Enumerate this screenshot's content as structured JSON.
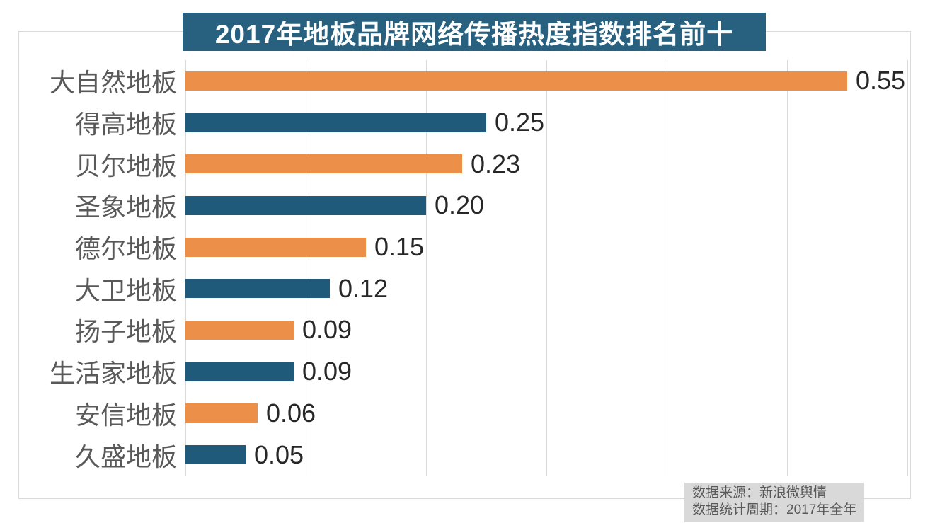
{
  "title": "2017年地板品牌网络传播热度指数排名前十",
  "source_note": {
    "line1": "数据来源：新浪微舆情",
    "line2": "数据统计周期：2017年全年"
  },
  "colors": {
    "banner_bg": "#27617f",
    "bar_orange": "#ec9049",
    "bar_teal": "#1f5a7a",
    "grid_line": "#d9d9d9",
    "frame_border": "#d9d9d9",
    "category_text": "#595959",
    "value_text": "#272727",
    "source_bg": "#d9d9d9",
    "source_text": "#595959"
  },
  "chart_data": {
    "type": "bar",
    "orientation": "horizontal",
    "title": "2017年地板品牌网络传播热度指数排名前十",
    "categories": [
      "大自然地板",
      "得高地板",
      "贝尔地板",
      "圣象地板",
      "德尔地板",
      "大卫地板",
      "扬子地板",
      "生活家地板",
      "安信地板",
      "久盛地板"
    ],
    "values": [
      0.55,
      0.25,
      0.23,
      0.2,
      0.15,
      0.12,
      0.09,
      0.09,
      0.06,
      0.05
    ],
    "value_labels": [
      "0.55",
      "0.25",
      "0.23",
      "0.20",
      "0.15",
      "0.12",
      "0.09",
      "0.09",
      "0.06",
      "0.05"
    ],
    "bar_color_pattern": [
      "#ec9049",
      "#1f5a7a"
    ],
    "xlabel": "",
    "ylabel": "",
    "xlim": [
      0,
      0.6
    ],
    "grid_step": 0.1,
    "grid": "vertical gridlines, no tick labels",
    "legend": "none",
    "data_labels": "value shown at end of each bar"
  }
}
